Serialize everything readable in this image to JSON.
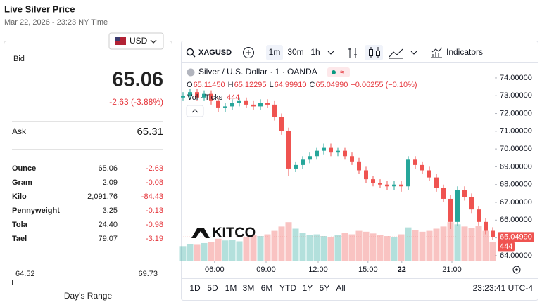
{
  "header": {
    "title": "Live Silver Price",
    "timestamp": "Mar 22, 2026 - 23:23 NY Time",
    "currency": "USD"
  },
  "quote": {
    "bid_label": "Bid",
    "bid": "65.06",
    "change": "-2.63 (-3.88%)",
    "ask_label": "Ask",
    "ask": "65.31",
    "rows": [
      [
        "Ounce",
        "65.06",
        "-2.63"
      ],
      [
        "Gram",
        "2.09",
        "-0.08"
      ],
      [
        "Kilo",
        "2,091.76",
        "-84.43"
      ],
      [
        "Pennyweight",
        "3.25",
        "-0.13"
      ],
      [
        "Tola",
        "24.40",
        "-0.98"
      ],
      [
        "Tael",
        "79.07",
        "-3.19"
      ]
    ],
    "range_low": "64.52",
    "range_high": "69.73",
    "range_label": "Day's Range"
  },
  "widget": {
    "symbol": "XAGUSD",
    "intervals": [
      "1m",
      "30m",
      "1h"
    ],
    "indicators": "Indicators",
    "legend_title": "Silver / U.S. Dollar · 1 · OANDA",
    "ohlc": [
      [
        "O",
        "65.11450"
      ],
      [
        "H",
        "65.12295"
      ],
      [
        "L",
        "64.99910"
      ],
      [
        "C",
        "65.04990"
      ]
    ],
    "change": "−0.06255 (−0.10%)",
    "vol_label": "Vol · Ticks",
    "vol_value": "444",
    "logo": "KITCO",
    "ranges": [
      "1D",
      "5D",
      "1M",
      "3M",
      "6M",
      "YTD",
      "1Y",
      "5Y",
      "All"
    ],
    "clock": "23:23:41 UTC-4"
  },
  "chart_data": {
    "type": "candlestick",
    "x": [
      0,
      25,
      50,
      75,
      100,
      125,
      150,
      175,
      200,
      225,
      250,
      275,
      300,
      325,
      350,
      375,
      400,
      425,
      450,
      475,
      500,
      525,
      550,
      575,
      600,
      625,
      650,
      675,
      700,
      725,
      750,
      775,
      800,
      825,
      850,
      875,
      900,
      925,
      950,
      975,
      1000,
      1025,
      1050,
      1075,
      1100
    ],
    "open": [
      72.9,
      73.0,
      73.2,
      72.9,
      73.1,
      72.7,
      72.3,
      72.4,
      72.6,
      72.7,
      72.5,
      72.4,
      72.6,
      72.5,
      71.8,
      71.0,
      68.9,
      69.1,
      69.4,
      69.6,
      69.9,
      70.1,
      69.8,
      69.9,
      69.6,
      69.3,
      68.8,
      68.3,
      68.1,
      68.0,
      67.9,
      68.0,
      67.9,
      69.4,
      69.1,
      68.8,
      68.4,
      67.8,
      67.2,
      65.9,
      67.7,
      67.3,
      66.6,
      65.9,
      65.4
    ],
    "high": [
      73.2,
      73.4,
      73.4,
      73.3,
      73.3,
      72.9,
      72.6,
      72.8,
      72.9,
      72.9,
      72.7,
      72.8,
      72.8,
      72.7,
      72.0,
      71.2,
      69.3,
      69.6,
      69.8,
      70.1,
      70.3,
      70.3,
      70.1,
      70.1,
      69.8,
      69.5,
      69.0,
      68.5,
      68.3,
      68.2,
      68.2,
      68.2,
      69.6,
      69.6,
      69.3,
      69.0,
      68.6,
      68.0,
      67.4,
      67.9,
      67.9,
      67.5,
      66.8,
      66.1,
      65.6
    ],
    "low": [
      72.7,
      72.8,
      72.7,
      72.7,
      72.5,
      72.1,
      72.1,
      72.2,
      72.4,
      72.3,
      72.2,
      72.2,
      72.3,
      71.6,
      70.8,
      68.5,
      68.7,
      68.9,
      69.2,
      69.4,
      69.7,
      69.6,
      69.6,
      69.4,
      69.1,
      68.6,
      68.1,
      67.9,
      67.8,
      67.7,
      67.7,
      67.6,
      67.7,
      68.9,
      68.6,
      68.2,
      67.6,
      67.0,
      65.5,
      65.7,
      67.1,
      66.4,
      65.7,
      65.2,
      64.9
    ],
    "close": [
      73.0,
      73.2,
      72.9,
      73.1,
      72.7,
      72.3,
      72.4,
      72.6,
      72.7,
      72.5,
      72.4,
      72.6,
      72.5,
      71.8,
      71.0,
      68.9,
      69.1,
      69.4,
      69.6,
      69.9,
      70.1,
      69.8,
      69.9,
      69.6,
      69.3,
      68.8,
      68.3,
      68.1,
      68.0,
      67.9,
      68.0,
      67.9,
      69.4,
      69.1,
      68.8,
      68.4,
      67.8,
      67.2,
      65.9,
      67.7,
      67.3,
      66.6,
      65.9,
      65.4,
      65.05
    ],
    "volume": [
      350,
      400,
      380,
      420,
      450,
      520,
      480,
      500,
      460,
      550,
      600,
      580,
      620,
      700,
      800,
      900,
      750,
      650,
      600,
      620,
      580,
      550,
      600,
      650,
      620,
      700,
      680,
      640,
      600,
      580,
      560,
      620,
      780,
      720,
      680,
      700,
      750,
      800,
      900,
      850,
      800,
      760,
      820,
      700,
      444
    ],
    "xlim": [
      0,
      1100
    ],
    "xticks": [
      {
        "value": 112,
        "label": "06:00"
      },
      {
        "value": 295,
        "label": "09:00"
      },
      {
        "value": 480,
        "label": "12:00"
      },
      {
        "value": 657,
        "label": "15:00"
      },
      {
        "value": 777,
        "label": "22"
      },
      {
        "value": 955,
        "label": "21:00"
      }
    ],
    "ylim": [
      63.68,
      74.63
    ],
    "yticks": [
      {
        "value": 64,
        "label": "64.00000"
      },
      {
        "value": 65,
        "label": "65.00000"
      },
      {
        "value": 66,
        "label": "66.00000"
      },
      {
        "value": 67,
        "label": "67.00000"
      },
      {
        "value": 68,
        "label": "68.00000"
      },
      {
        "value": 69,
        "label": "69.00000"
      },
      {
        "value": 70,
        "label": "70.00000"
      },
      {
        "value": 71,
        "label": "71.00000"
      },
      {
        "value": 72,
        "label": "72.00000"
      },
      {
        "value": 73,
        "label": "73.00000"
      },
      {
        "value": 74,
        "label": "74.00000"
      }
    ],
    "last_price": {
      "value": 65.0499,
      "label": "65.04990"
    },
    "last_volume": 444,
    "up_color": "#26a69a",
    "down_color": "#ef5350"
  }
}
